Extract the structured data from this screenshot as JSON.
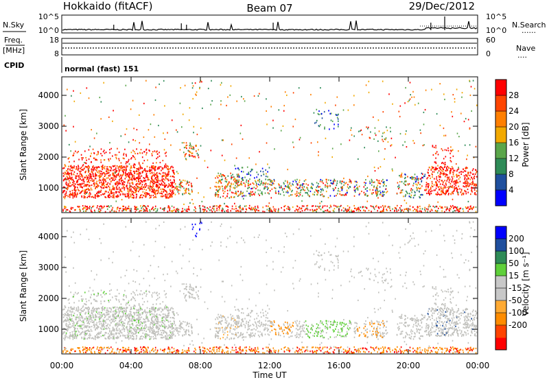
{
  "header": {
    "left": "Hokkaido (fitACF)",
    "center": "Beam 07",
    "right": "29/Dec/2012"
  },
  "labels": {
    "nsky": "N.Sky",
    "nsearch": "N.Search",
    "freq": "Freq.",
    "mhz": "[MHz]",
    "nave": "Nave",
    "cpid": "CPID",
    "cpid_value": "normal (fast) 151",
    "dots": "......",
    "nave_dots": "...."
  },
  "noise_axis": {
    "left_ticks": [
      "10^5",
      "10^0"
    ],
    "right_ticks": [
      "10^5",
      "10^0"
    ]
  },
  "freq_axis": {
    "left_ticks": [
      "18",
      "8"
    ],
    "right_ticks": [
      "60",
      "0"
    ]
  },
  "colors": {
    "power_scale": [
      "#0000ff",
      "#1f4f9e",
      "#2e8b57",
      "#5aa64a",
      "#f2a900",
      "#ff7f00",
      "#ff4500",
      "#ff0000"
    ],
    "velocity_scale": [
      "#ff0000",
      "#ff4400",
      "#ff8c00",
      "#ffaa33",
      "#c8c8c8",
      "#c8c8c8",
      "#5fd03a",
      "#2e8b57",
      "#1f4f9e",
      "#0000ff"
    ],
    "gray": "#c0c0bc"
  },
  "chart_data": [
    {
      "type": "heatmap",
      "name": "power",
      "ylabel": "Slant Range [km]",
      "xlabel": "Time UT",
      "x_ticks": [
        "00:00",
        "04:00",
        "08:00",
        "12:00",
        "16:00",
        "20:00",
        "00:00"
      ],
      "y_ticks": [
        1000,
        2000,
        3000,
        4000
      ],
      "ylim": [
        200,
        4600
      ],
      "xlim": [
        0,
        24
      ],
      "colorbar_label": "Power [dB]",
      "colorbar_ticks": [
        4,
        8,
        12,
        16,
        20,
        24,
        28
      ]
    },
    {
      "type": "heatmap",
      "name": "velocity",
      "ylabel": "Slant Range [km]",
      "xlabel": "Time UT",
      "x_ticks": [
        "00:00",
        "04:00",
        "08:00",
        "12:00",
        "16:00",
        "20:00",
        "00:00"
      ],
      "y_ticks": [
        1000,
        2000,
        3000,
        4000
      ],
      "ylim": [
        200,
        4600
      ],
      "xlim": [
        0,
        24
      ],
      "colorbar_label": "Velocity [m s⁻¹]",
      "colorbar_ticks": [
        200,
        100,
        50,
        15,
        -15,
        -50,
        -100,
        -200
      ]
    }
  ]
}
